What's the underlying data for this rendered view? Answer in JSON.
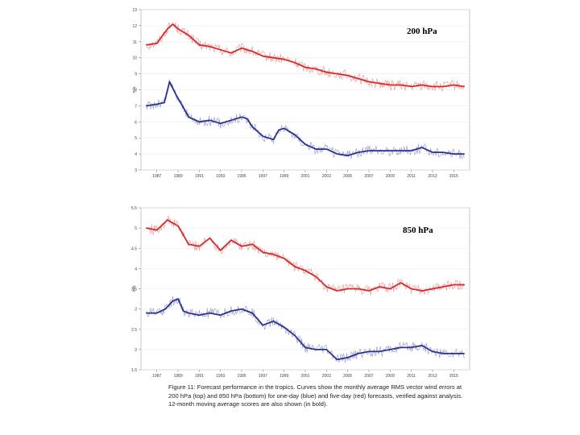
{
  "chart_data": [
    {
      "type": "line",
      "title": "200 hPa",
      "ylabel": "m/s",
      "xlabel": "",
      "xlim": [
        1985.5,
        2016.5
      ],
      "ylim": [
        3,
        13
      ],
      "yticks": [
        "3",
        "4",
        "5",
        "6",
        "7",
        "8",
        "9",
        "10",
        "11",
        "12",
        "13"
      ],
      "xticks": [
        "1987",
        "1989",
        "1991",
        "1993",
        "1995",
        "1997",
        "1999",
        "2001",
        "2003",
        "2005",
        "2007",
        "2009",
        "2011",
        "2013",
        "2015"
      ],
      "series": [
        {
          "name": "five-day (red) 12-month moving average",
          "color": "#d42a2a",
          "x": [
            1986,
            1987,
            1988,
            1988.5,
            1989,
            1990,
            1991,
            1992,
            1993,
            1994,
            1995,
            1996,
            1997,
            1998,
            1999,
            2000,
            2001,
            2002,
            2003,
            2004,
            2005,
            2006,
            2007,
            2008,
            2009,
            2010,
            2011,
            2012,
            2013,
            2014,
            2015,
            2016
          ],
          "values": [
            10.8,
            10.9,
            11.8,
            12.1,
            11.8,
            11.4,
            10.8,
            10.7,
            10.5,
            10.3,
            10.6,
            10.4,
            10.1,
            10.0,
            9.9,
            9.7,
            9.4,
            9.3,
            9.1,
            9.0,
            8.9,
            8.7,
            8.5,
            8.4,
            8.3,
            8.3,
            8.2,
            8.3,
            8.2,
            8.2,
            8.3,
            8.2
          ]
        },
        {
          "name": "one-day (blue) 12-month moving average",
          "color": "#2a3290",
          "x": [
            1986,
            1987,
            1987.7,
            1988.2,
            1988.8,
            1989.5,
            1990,
            1991,
            1992,
            1993,
            1994,
            1995,
            1995.5,
            1996,
            1997,
            1998,
            1998.5,
            1999,
            2000,
            2001,
            2002,
            2003,
            2004,
            2005,
            2006,
            2007,
            2008,
            2009,
            2010,
            2011,
            2012,
            2013,
            2014,
            2015,
            2016
          ],
          "values": [
            7.0,
            7.1,
            7.2,
            8.5,
            7.7,
            6.9,
            6.3,
            6.0,
            6.1,
            5.9,
            6.1,
            6.3,
            6.2,
            5.7,
            5.1,
            4.9,
            5.5,
            5.6,
            5.2,
            4.6,
            4.3,
            4.3,
            4.0,
            3.9,
            4.1,
            4.2,
            4.2,
            4.2,
            4.2,
            4.2,
            4.4,
            4.1,
            4.1,
            4.0,
            4.0
          ]
        }
      ]
    },
    {
      "type": "line",
      "title": "850 hPa",
      "ylabel": "m/s",
      "xlabel": "",
      "xlim": [
        1985.5,
        2016.5
      ],
      "ylim": [
        1.5,
        5.5
      ],
      "yticks": [
        "1.5",
        "2",
        "2.5",
        "3",
        "3.5",
        "4",
        "4.5",
        "5",
        "5.5"
      ],
      "xticks": [
        "1987",
        "1989",
        "1991",
        "1993",
        "1995",
        "1997",
        "1999",
        "2001",
        "2003",
        "2005",
        "2007",
        "2009",
        "2011",
        "2013",
        "2015"
      ],
      "series": [
        {
          "name": "five-day (red) 12-month moving average",
          "color": "#d42a2a",
          "x": [
            1986,
            1987,
            1988,
            1989,
            1990,
            1991,
            1992,
            1993,
            1994,
            1995,
            1996,
            1997,
            1998,
            1999,
            2000,
            2001,
            2002,
            2003,
            2004,
            2005,
            2006,
            2007,
            2008,
            2009,
            2010,
            2011,
            2012,
            2013,
            2014,
            2015,
            2016
          ],
          "values": [
            5.0,
            4.95,
            5.2,
            5.05,
            4.6,
            4.55,
            4.75,
            4.45,
            4.7,
            4.55,
            4.6,
            4.4,
            4.35,
            4.25,
            4.05,
            3.95,
            3.8,
            3.55,
            3.45,
            3.5,
            3.5,
            3.45,
            3.55,
            3.5,
            3.65,
            3.5,
            3.45,
            3.5,
            3.55,
            3.6,
            3.6
          ]
        },
        {
          "name": "one-day (blue) 12-month moving average",
          "color": "#2a3290",
          "x": [
            1986,
            1987,
            1987.8,
            1988.5,
            1989,
            1989.5,
            1990,
            1991,
            1992,
            1993,
            1994,
            1995,
            1996,
            1997,
            1998,
            1999,
            2000,
            2001,
            2002,
            2003,
            2004,
            2005,
            2006,
            2007,
            2008,
            2009,
            2010,
            2011,
            2012,
            2013,
            2014,
            2015,
            2016
          ],
          "values": [
            2.9,
            2.9,
            3.0,
            3.2,
            3.25,
            2.95,
            2.9,
            2.85,
            2.9,
            2.85,
            2.95,
            3.0,
            2.9,
            2.6,
            2.7,
            2.55,
            2.35,
            2.05,
            2.0,
            2.0,
            1.75,
            1.8,
            1.9,
            1.95,
            1.95,
            2.0,
            2.05,
            2.05,
            2.1,
            1.95,
            1.9,
            1.9,
            1.9
          ]
        }
      ]
    }
  ],
  "caption": {
    "text": "Figure 11: Forecast performance in the tropics. Curves show the monthly average RMS vector wind errors at 200 hPa (top) and 850 hPa (bottom) for one-day (blue) and five-day (red) forecasts, verified against analysis. 12-month moving average scores are also shown (in bold)."
  }
}
